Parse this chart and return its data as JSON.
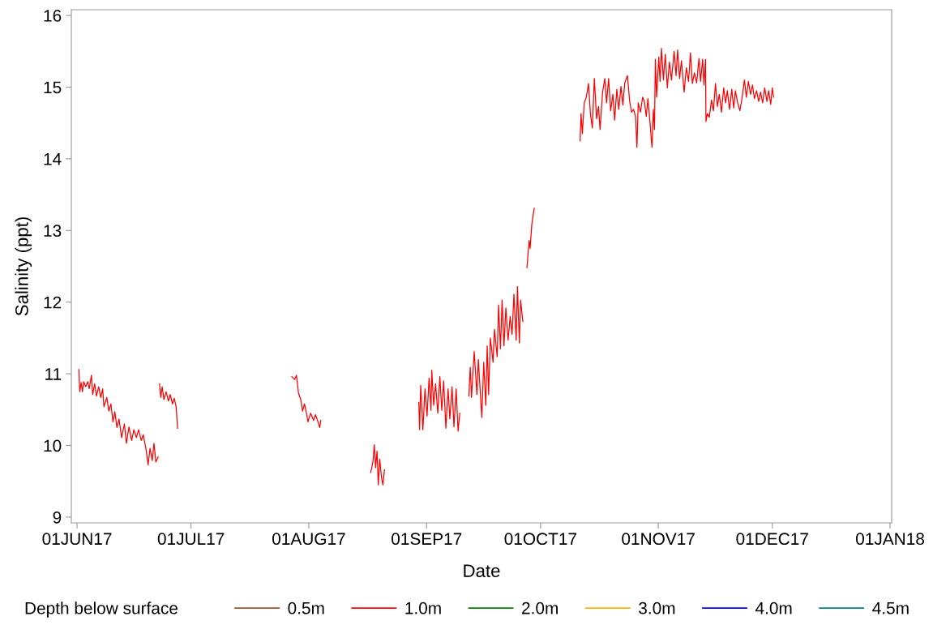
{
  "chart_data": {
    "type": "line",
    "xlabel": "Date",
    "ylabel": "Salinity (ppt)",
    "legend_title": "Depth below surface",
    "legend": "bottom",
    "grid": false,
    "marker": "none",
    "line_style": "solid",
    "xlim": [
      "2017-05-30T12:00",
      "2018-01-01T10:00"
    ],
    "xticks": [
      {
        "value": "2017-06-01",
        "label": "01JUN17"
      },
      {
        "value": "2017-07-01",
        "label": "01JUL17"
      },
      {
        "value": "2017-08-01",
        "label": "01AUG17"
      },
      {
        "value": "2017-09-01",
        "label": "01SEP17"
      },
      {
        "value": "2017-10-01",
        "label": "01OCT17"
      },
      {
        "value": "2017-11-01",
        "label": "01NOV17"
      },
      {
        "value": "2017-12-01",
        "label": "01DEC17"
      },
      {
        "value": "2018-01-01",
        "label": "01JAN18"
      }
    ],
    "ylim": [
      8.92,
      16.08
    ],
    "yticks": [
      9,
      10,
      11,
      12,
      13,
      14,
      15,
      16
    ],
    "series": [
      {
        "name": "0.5m",
        "color": "#a0522d"
      },
      {
        "name": "1.0m",
        "color": "#ff0000",
        "x": [
          "2017-06-01T12:00",
          "2017-06-01T17:00",
          "2017-06-02T02:00",
          "2017-06-02T10:00",
          "2017-06-02T18:00",
          "2017-06-03T07:00",
          "2017-06-03T20:00",
          "2017-06-04T05:00",
          "2017-06-04T19:00",
          "2017-06-05T03:00",
          "2017-06-05T15:00",
          "2017-06-06T03:00",
          "2017-06-06T17:00",
          "2017-06-07T06:00",
          "2017-06-07T18:00",
          "2017-06-08T02:00",
          "2017-06-08T20:00",
          "2017-06-09T09:00",
          "2017-06-09T22:00",
          "2017-06-10T11:00",
          "2017-06-10T23:00",
          "2017-06-11T12:00",
          "2017-06-12T01:00",
          "2017-06-12T18:00",
          "2017-06-13T11:00",
          "2017-06-14T00:00",
          "2017-06-14T16:00",
          "2017-06-15T09:00",
          "2017-06-15T23:00",
          "2017-06-16T15:00",
          "2017-06-17T05:00",
          "2017-06-17T22:00",
          "2017-06-18T10:00",
          "2017-06-19T03:00",
          "2017-06-19T17:00",
          "2017-06-20T05:00",
          "2017-06-20T19:00",
          "2017-06-21T06:00",
          "2017-06-21T18:00",
          "2017-06-22T08:00",
          "2017-06-22T12:00",
          "2017-06-22T17:00",
          "2017-06-23T01:00",
          "2017-06-23T10:00",
          "2017-06-23T21:00",
          "2017-06-24T11:00",
          "2017-06-25T01:00",
          "2017-06-25T13:00",
          "2017-06-26T03:00",
          "2017-06-26T14:00",
          "2017-06-27T02:00",
          "2017-06-27T11:00",
          "2017-07-10T00:00",
          "2017-07-27T13:00",
          "2017-07-28T06:00",
          "2017-07-28T18:00",
          "2017-07-29T07:00",
          "2017-07-29T21:00",
          "2017-07-30T09:00",
          "2017-07-30T21:00",
          "2017-07-31T11:00",
          "2017-07-31T19:00",
          "2017-08-01T12:00",
          "2017-08-02T06:00",
          "2017-08-02T18:00",
          "2017-08-03T07:00",
          "2017-08-03T21:00",
          "2017-08-04T04:00",
          "2017-08-10T00:00",
          "2017-08-17T07:00",
          "2017-08-17T21:00",
          "2017-08-18T06:00",
          "2017-08-18T14:00",
          "2017-08-18T23:00",
          "2017-08-19T07:00",
          "2017-08-19T16:00",
          "2017-08-20T04:00",
          "2017-08-20T12:00",
          "2017-08-20T22:00",
          "2017-08-25T00:00",
          "2017-08-29T23:00",
          "2017-08-30T04:00",
          "2017-08-30T11:00",
          "2017-08-31T01:00",
          "2017-08-31T14:00",
          "2017-09-01T03:00",
          "2017-09-01T16:00",
          "2017-09-02T04:00",
          "2017-09-02T09:00",
          "2017-09-02T21:00",
          "2017-09-03T09:00",
          "2017-09-03T23:00",
          "2017-09-04T12:00",
          "2017-09-05T00:00",
          "2017-09-05T12:00",
          "2017-09-06T02:00",
          "2017-09-06T16:00",
          "2017-09-07T03:00",
          "2017-09-07T17:00",
          "2017-09-08T05:00",
          "2017-09-08T19:00",
          "2017-09-09T07:00",
          "2017-09-09T18:00",
          "2017-09-11T12:00",
          "2017-09-12T03:00",
          "2017-09-12T12:00",
          "2017-09-12T20:00",
          "2017-09-13T13:00",
          "2017-09-14T06:00",
          "2017-09-14T15:00",
          "2017-09-15T13:00",
          "2017-09-16T01:00",
          "2017-09-16T14:00",
          "2017-09-16T23:00",
          "2017-09-17T08:00",
          "2017-09-17T19:00",
          "2017-09-18T12:00",
          "2017-09-18T21:00",
          "2017-09-19T14:00",
          "2017-09-19T23:00",
          "2017-09-20T11:00",
          "2017-09-20T21:00",
          "2017-09-21T09:00",
          "2017-09-21T21:00",
          "2017-09-22T11:00",
          "2017-09-23T00:00",
          "2017-09-23T12:00",
          "2017-09-24T00:00",
          "2017-09-24T14:00",
          "2017-09-24T22:00",
          "2017-09-25T10:00",
          "2017-09-25T18:00",
          "2017-09-26T08:00",
          "2017-09-26T20:00",
          "2017-09-27T10:00",
          "2017-09-28T00:00",
          "2017-09-28T06:00",
          "2017-09-28T17:00",
          "2017-09-29T08:00",
          "2017-10-05T00:00",
          "2017-10-11T10:00",
          "2017-10-11T16:00",
          "2017-10-12T00:00",
          "2017-10-12T12:00",
          "2017-10-13T01:00",
          "2017-10-13T15:00",
          "2017-10-14T03:00",
          "2017-10-14T15:00",
          "2017-10-15T04:00",
          "2017-10-15T18:00",
          "2017-10-16T06:00",
          "2017-10-16T16:00",
          "2017-10-17T08:00",
          "2017-10-17T22:00",
          "2017-10-18T09:00",
          "2017-10-18T22:00",
          "2017-10-19T11:00",
          "2017-10-20T01:00",
          "2017-10-20T12:00",
          "2017-10-21T02:00",
          "2017-10-21T14:00",
          "2017-10-22T04:00",
          "2017-10-22T16:00",
          "2017-10-23T04:00",
          "2017-10-23T21:00",
          "2017-10-24T11:00",
          "2017-10-24T23:00",
          "2017-10-25T12:00",
          "2017-10-26T00:00",
          "2017-10-26T09:00",
          "2017-10-26T17:00",
          "2017-10-27T07:00",
          "2017-10-27T21:00",
          "2017-10-28T08:00",
          "2017-10-28T20:00",
          "2017-10-29T06:00",
          "2017-10-29T19:00",
          "2017-10-30T03:00",
          "2017-10-30T08:00",
          "2017-10-30T17:00",
          "2017-10-31T00:00",
          "2017-10-31T05:00",
          "2017-10-31T13:00",
          "2017-11-01T03:00",
          "2017-11-01T11:00",
          "2017-11-01T20:00",
          "2017-11-02T08:00",
          "2017-11-02T20:00",
          "2017-11-03T09:00",
          "2017-11-03T22:00",
          "2017-11-04T11:00",
          "2017-11-05T04:00",
          "2017-11-05T16:00",
          "2017-11-06T02:00",
          "2017-11-06T14:00",
          "2017-11-07T02:00",
          "2017-11-07T19:00",
          "2017-11-08T09:00",
          "2017-11-08T23:00",
          "2017-11-09T11:00",
          "2017-11-09T23:00",
          "2017-11-10T12:00",
          "2017-11-11T02:00",
          "2017-11-11T17:00",
          "2017-11-12T03:00",
          "2017-11-12T16:00",
          "2017-11-13T00:00",
          "2017-11-13T10:00",
          "2017-11-13T13:00",
          "2017-11-13T22:00",
          "2017-11-14T10:00",
          "2017-11-15T00:00",
          "2017-11-15T12:00",
          "2017-11-16T01:00",
          "2017-11-16T13:00",
          "2017-11-17T01:00",
          "2017-11-17T15:00",
          "2017-11-18T05:00",
          "2017-11-18T17:00",
          "2017-11-19T04:00",
          "2017-11-19T18:00",
          "2017-11-20T08:00",
          "2017-11-20T20:00",
          "2017-11-21T07:00",
          "2017-11-21T21:00",
          "2017-11-22T11:00",
          "2017-11-22T23:00",
          "2017-11-23T16:00",
          "2017-11-24T04:00",
          "2017-11-24T17:00",
          "2017-11-25T07:00",
          "2017-11-25T19:00",
          "2017-11-26T07:00",
          "2017-11-26T21:00",
          "2017-11-27T10:00",
          "2017-11-27T22:00",
          "2017-11-28T11:00",
          "2017-11-29T00:00",
          "2017-11-29T14:00",
          "2017-11-30T01:00",
          "2017-11-30T14:00",
          "2017-12-01T00:00",
          "2017-12-01T08:00"
        ],
        "values": [
          11.06,
          10.75,
          10.88,
          10.75,
          10.89,
          10.82,
          10.89,
          10.79,
          10.98,
          10.71,
          10.86,
          10.69,
          10.82,
          10.67,
          10.79,
          10.54,
          10.67,
          10.48,
          10.58,
          10.33,
          10.47,
          10.25,
          10.37,
          10.11,
          10.3,
          10.03,
          10.26,
          10.07,
          10.22,
          10.11,
          10.22,
          10.07,
          10.15,
          9.96,
          9.73,
          9.96,
          9.79,
          10.03,
          9.77,
          9.84,
          null,
          10.86,
          10.67,
          10.82,
          10.64,
          10.75,
          10.62,
          10.71,
          10.58,
          10.66,
          10.54,
          10.24,
          null,
          10.96,
          10.92,
          10.98,
          10.73,
          10.64,
          10.48,
          10.58,
          10.43,
          10.33,
          10.45,
          10.35,
          10.43,
          10.35,
          10.25,
          10.35,
          null,
          9.62,
          9.77,
          10.01,
          9.69,
          9.92,
          9.45,
          9.81,
          9.54,
          9.45,
          9.66,
          null,
          10.6,
          10.22,
          10.84,
          10.22,
          10.79,
          10.41,
          10.94,
          10.49,
          11.05,
          10.56,
          10.86,
          10.45,
          10.96,
          10.49,
          10.9,
          10.24,
          10.79,
          10.37,
          10.82,
          10.26,
          10.79,
          10.2,
          10.45,
          null,
          10.69,
          11.09,
          10.67,
          11.31,
          10.71,
          11.2,
          10.39,
          11.16,
          10.56,
          11.39,
          10.71,
          11.5,
          11.16,
          11.62,
          11.24,
          11.96,
          11.35,
          12.03,
          11.39,
          11.92,
          11.47,
          11.8,
          11.55,
          12.11,
          11.47,
          12.22,
          11.43,
          12.03,
          11.73,
          null,
          12.48,
          12.86,
          12.75,
          13.09,
          13.31,
          null,
          14.25,
          14.63,
          14.35,
          14.78,
          14.86,
          15.05,
          14.63,
          14.43,
          15.12,
          14.56,
          14.73,
          14.41,
          14.93,
          15.12,
          14.78,
          15.12,
          14.67,
          14.9,
          14.54,
          14.97,
          14.69,
          15.01,
          14.75,
          15.06,
          15.16,
          14.8,
          14.65,
          14.69,
          14.59,
          14.16,
          14.78,
          14.65,
          14.86,
          14.8,
          14.59,
          14.84,
          14.52,
          14.29,
          14.16,
          14.69,
          14.41,
          15.39,
          14.86,
          15.42,
          15.08,
          15.54,
          15.1,
          15.46,
          14.99,
          15.35,
          15.1,
          15.5,
          15.16,
          15.52,
          15.12,
          15.37,
          14.93,
          15.27,
          15.08,
          15.48,
          15.05,
          15.2,
          15.06,
          15.4,
          15.08,
          15.39,
          15.03,
          15.39,
          14.52,
          14.63,
          14.58,
          14.82,
          14.67,
          15.05,
          14.73,
          14.9,
          14.65,
          14.99,
          14.78,
          14.95,
          14.69,
          14.97,
          14.71,
          14.95,
          14.78,
          14.67,
          14.82,
          15.1,
          14.86,
          15.08,
          14.9,
          15.03,
          14.84,
          14.95,
          14.8,
          14.93,
          14.78,
          14.99,
          14.8,
          14.95,
          14.76,
          14.99,
          14.86
        ]
      },
      {
        "name": "2.0m",
        "color": "#008000"
      },
      {
        "name": "3.0m",
        "color": "#ffb000"
      },
      {
        "name": "4.0m",
        "color": "#0000ff"
      },
      {
        "name": "4.5m",
        "color": "#008080"
      }
    ]
  }
}
